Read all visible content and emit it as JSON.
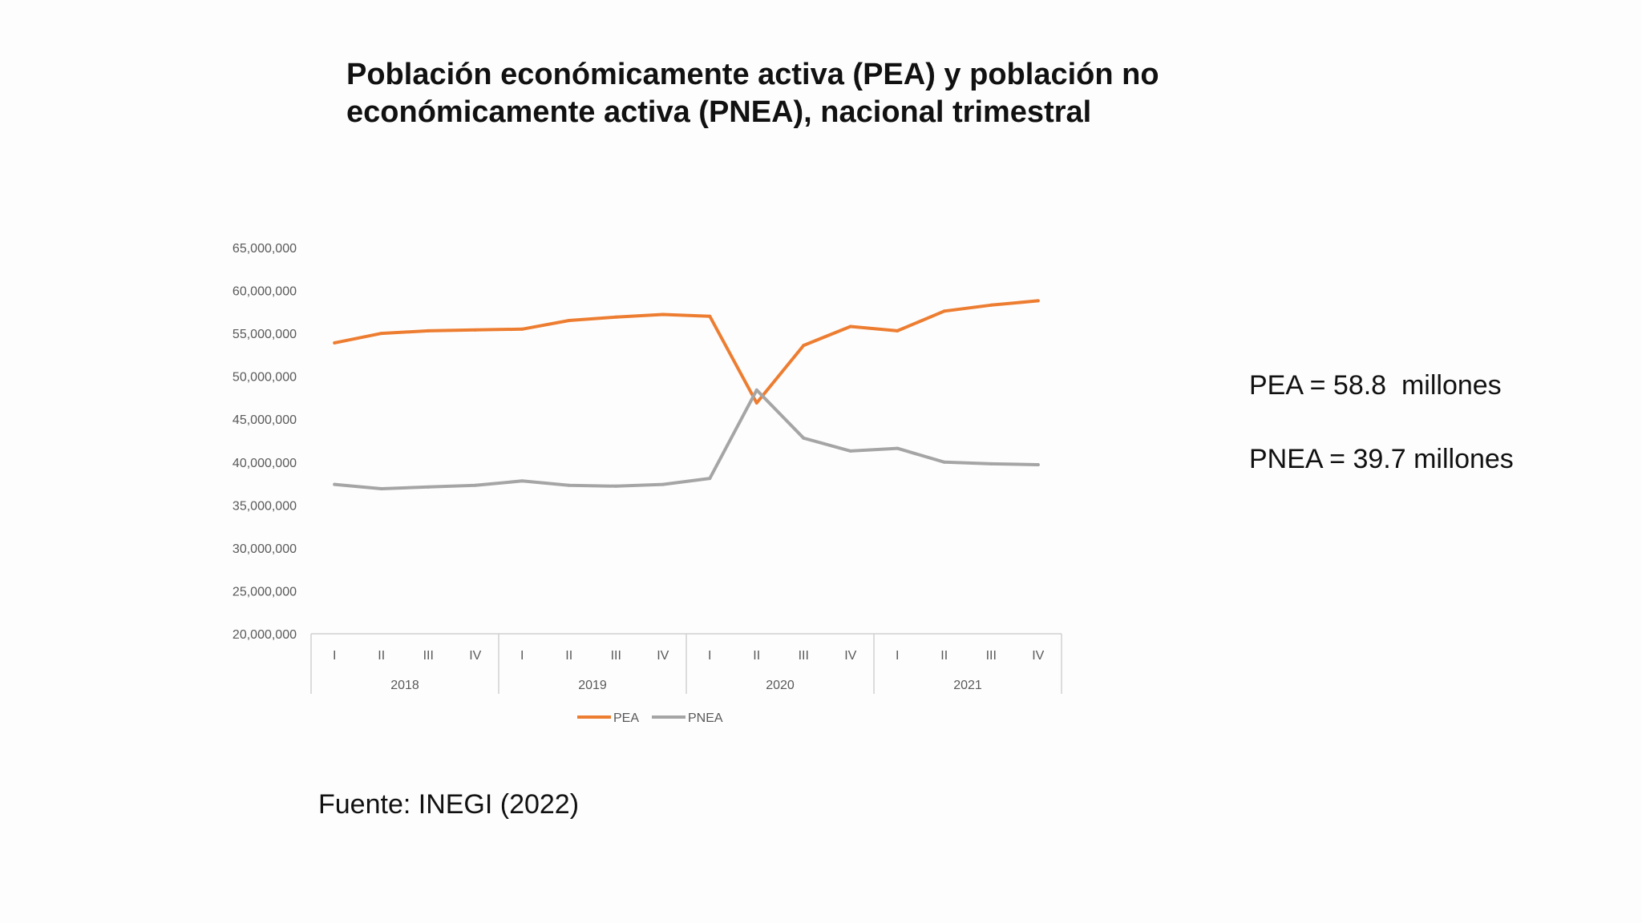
{
  "title_lines": [
    "Población económicamente activa (PEA) y población no",
    "económicamente activa (PNEA), nacional trimestral"
  ],
  "chart_data": {
    "type": "line",
    "title": "Población económicamente activa (PEA) y población no económicamente activa (PNEA), nacional trimestral",
    "xlabel": "",
    "ylabel": "",
    "ylim": [
      20000000,
      65000000
    ],
    "yticks": [
      20000000,
      25000000,
      30000000,
      35000000,
      40000000,
      45000000,
      50000000,
      55000000,
      60000000,
      65000000
    ],
    "ytick_labels": [
      "20,000,000",
      "25,000,000",
      "30,000,000",
      "35,000,000",
      "40,000,000",
      "45,000,000",
      "50,000,000",
      "55,000,000",
      "60,000,000",
      "65,000,000"
    ],
    "categories": [
      "I",
      "II",
      "III",
      "IV",
      "I",
      "II",
      "III",
      "IV",
      "I",
      "II",
      "III",
      "IV",
      "I",
      "II",
      "III",
      "IV"
    ],
    "groups": [
      {
        "label": "2018",
        "count": 4
      },
      {
        "label": "2019",
        "count": 4
      },
      {
        "label": "2020",
        "count": 4
      },
      {
        "label": "2021",
        "count": 4
      }
    ],
    "series": [
      {
        "name": "PEA",
        "color": "#ed7d31",
        "values": [
          53900000,
          55000000,
          55300000,
          55400000,
          55500000,
          56500000,
          56900000,
          57200000,
          57000000,
          46900000,
          53600000,
          55800000,
          55300000,
          57600000,
          58300000,
          58800000
        ]
      },
      {
        "name": "PNEA",
        "color": "#a5a5a5",
        "values": [
          37400000,
          36900000,
          37100000,
          37300000,
          37800000,
          37300000,
          37200000,
          37400000,
          38100000,
          48400000,
          42800000,
          41300000,
          41600000,
          40000000,
          39800000,
          39700000
        ]
      }
    ],
    "legend": "bottom",
    "grid": false
  },
  "callouts": {
    "pea": "PEA = 58.8  millones",
    "pnea": "PNEA = 39.7 millones"
  },
  "source": "Fuente: INEGI (2022)"
}
